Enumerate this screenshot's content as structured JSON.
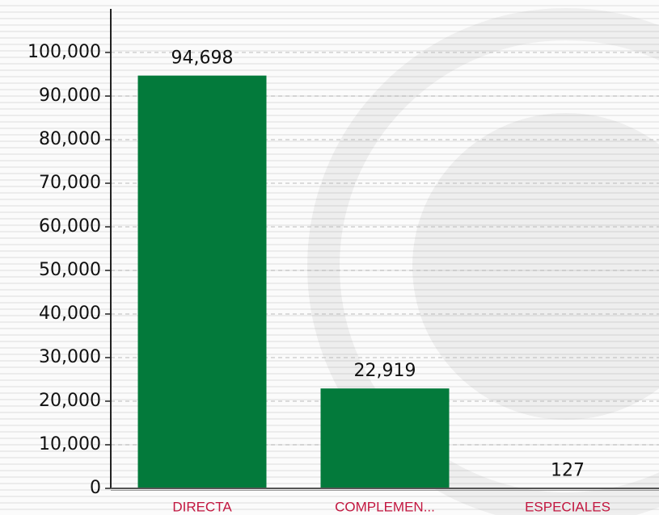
{
  "chart_data": {
    "type": "bar",
    "categories": [
      "DIRECTA",
      "COMPLEMEN...",
      "ESPECIALES"
    ],
    "values": [
      94698,
      22919,
      127
    ],
    "value_labels": [
      "94,698",
      "22,919",
      "127"
    ],
    "color": "#037a3b",
    "ylim": [
      0,
      110000
    ],
    "yticks": [
      0,
      {
        "value": 10000,
        "label": "10,000"
      },
      {
        "value": 20000,
        "label": "20,000"
      },
      {
        "value": 30000,
        "label": "30,000"
      },
      {
        "value": 40000,
        "label": "40,000"
      },
      {
        "value": 50000,
        "label": "50,000"
      },
      {
        "value": 60000,
        "label": "60,000"
      },
      {
        "value": 70000,
        "label": "70,000"
      },
      {
        "value": 80000,
        "label": "80,000"
      },
      {
        "value": 90000,
        "label": "90,000"
      },
      {
        "value": 100000,
        "label": "100,000"
      }
    ],
    "grid": true
  }
}
